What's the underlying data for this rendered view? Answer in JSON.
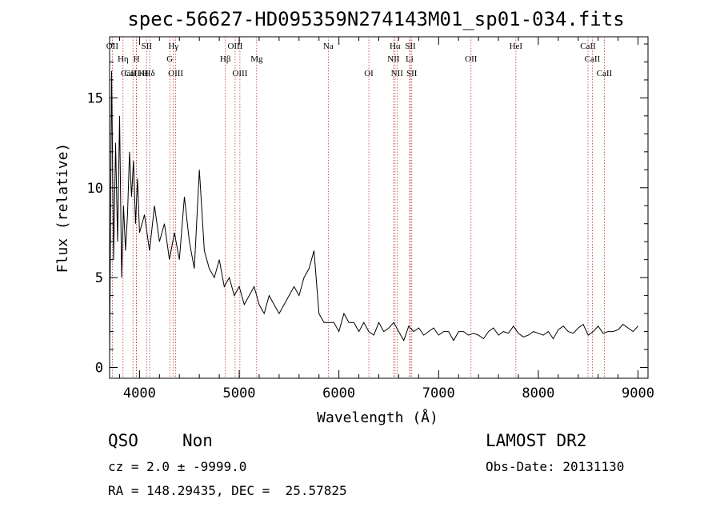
{
  "chart_data": {
    "type": "line",
    "title": "spec-56627-HD095359N274143M01_sp01-034.fits",
    "xlabel": "Wavelength (Å)",
    "ylabel": "Flux (relative)",
    "xlim": [
      3700,
      9100
    ],
    "ylim": [
      -0.6,
      18.4
    ],
    "xticks": [
      4000,
      5000,
      6000,
      7000,
      8000,
      9000
    ],
    "yticks": [
      0,
      5,
      10,
      15
    ],
    "grid": false,
    "line_color": "#000000",
    "marker_color": "#b22222",
    "series": [
      {
        "name": "spectrum",
        "x": [
          3700,
          3720,
          3740,
          3760,
          3780,
          3800,
          3820,
          3840,
          3860,
          3880,
          3900,
          3920,
          3940,
          3960,
          3980,
          4000,
          4050,
          4100,
          4150,
          4200,
          4250,
          4300,
          4350,
          4400,
          4450,
          4500,
          4550,
          4600,
          4650,
          4700,
          4750,
          4800,
          4850,
          4900,
          4950,
          5000,
          5050,
          5100,
          5150,
          5200,
          5250,
          5300,
          5350,
          5400,
          5450,
          5500,
          5550,
          5600,
          5650,
          5700,
          5750,
          5800,
          5850,
          5900,
          5950,
          6000,
          6050,
          6100,
          6150,
          6200,
          6250,
          6300,
          6350,
          6400,
          6450,
          6500,
          6550,
          6600,
          6650,
          6700,
          6750,
          6800,
          6850,
          6900,
          6950,
          7000,
          7050,
          7100,
          7150,
          7200,
          7250,
          7300,
          7350,
          7400,
          7450,
          7500,
          7550,
          7600,
          7650,
          7700,
          7750,
          7800,
          7850,
          7900,
          7950,
          8000,
          8050,
          8100,
          8150,
          8200,
          8250,
          8300,
          8350,
          8400,
          8450,
          8500,
          8550,
          8600,
          8650,
          8700,
          8750,
          8800,
          8850,
          8900,
          8950,
          9000
        ],
        "y": [
          0.5,
          16.5,
          6.0,
          12.5,
          7.0,
          14.0,
          5.0,
          9.0,
          6.5,
          8.5,
          12.0,
          9.5,
          11.5,
          8.0,
          10.5,
          7.5,
          8.5,
          6.5,
          9.0,
          7.0,
          8.0,
          6.0,
          7.5,
          6.0,
          9.5,
          7.0,
          5.5,
          11.0,
          6.5,
          5.5,
          5.0,
          6.0,
          4.5,
          5.0,
          4.0,
          4.5,
          3.5,
          4.0,
          4.5,
          3.5,
          3.0,
          4.0,
          3.5,
          3.0,
          3.5,
          4.0,
          4.5,
          4.0,
          5.0,
          5.5,
          6.5,
          3.0,
          2.5,
          2.5,
          2.5,
          2.0,
          3.0,
          2.5,
          2.5,
          2.0,
          2.5,
          2.0,
          1.8,
          2.5,
          2.0,
          2.2,
          2.5,
          2.0,
          1.5,
          2.3,
          2.0,
          2.2,
          1.8,
          2.0,
          2.2,
          1.8,
          2.0,
          2.0,
          1.5,
          2.0,
          2.0,
          1.8,
          1.9,
          1.8,
          1.6,
          2.0,
          2.2,
          1.8,
          2.0,
          1.9,
          2.3,
          1.9,
          1.7,
          1.8,
          2.0,
          1.9,
          1.8,
          2.0,
          1.6,
          2.1,
          2.3,
          2.0,
          1.9,
          2.2,
          2.4,
          1.8,
          2.0,
          2.3,
          1.9,
          2.0,
          2.0,
          2.1,
          2.4,
          2.2,
          2.0,
          2.3
        ]
      }
    ],
    "spectral_lines": [
      {
        "label": "OII",
        "wavelength": 3727,
        "row": 0
      },
      {
        "label": "Hη",
        "wavelength": 3835,
        "row": 1
      },
      {
        "label": "CaII K",
        "wavelength": 3934,
        "row": 2
      },
      {
        "label": "CaII H",
        "wavelength": 3969,
        "row": 2
      },
      {
        "label": "H",
        "wavelength": 3970,
        "row": 1
      },
      {
        "label": "SII",
        "wavelength": 4072,
        "row": 0
      },
      {
        "label": "Hδ",
        "wavelength": 4102,
        "row": 2
      },
      {
        "label": "Hγ",
        "wavelength": 4340,
        "row": 0
      },
      {
        "label": "G",
        "wavelength": 4304,
        "row": 1
      },
      {
        "label": "OIII",
        "wavelength": 4363,
        "row": 2
      },
      {
        "label": "OIII",
        "wavelength": 4959,
        "row": 0
      },
      {
        "label": "Hβ",
        "wavelength": 4861,
        "row": 1
      },
      {
        "label": "OIII",
        "wavelength": 5007,
        "row": 2
      },
      {
        "label": "Mg",
        "wavelength": 5175,
        "row": 1
      },
      {
        "label": "Na",
        "wavelength": 5893,
        "row": 0
      },
      {
        "label": "OI",
        "wavelength": 6300,
        "row": 2
      },
      {
        "label": "Hα",
        "wavelength": 6563,
        "row": 0
      },
      {
        "label": "NII",
        "wavelength": 6548,
        "row": 1
      },
      {
        "label": "NII",
        "wavelength": 6583,
        "row": 2
      },
      {
        "label": "SII",
        "wavelength": 6717,
        "row": 0
      },
      {
        "label": "Li",
        "wavelength": 6708,
        "row": 1
      },
      {
        "label": "SII",
        "wavelength": 6731,
        "row": 2
      },
      {
        "label": "OII",
        "wavelength": 7325,
        "row": 1
      },
      {
        "label": "HeI",
        "wavelength": 7775,
        "row": 0
      },
      {
        "label": "CaII",
        "wavelength": 8498,
        "row": 0
      },
      {
        "label": "CaII",
        "wavelength": 8542,
        "row": 1
      },
      {
        "label": "CaII",
        "wavelength": 8662,
        "row": 2
      }
    ]
  },
  "info": {
    "class": "QSO",
    "subclass": "Non",
    "survey": "LAMOST DR2",
    "cz": "cz = 2.0 ± -9999.0",
    "obs_date": "Obs-Date: 20131130",
    "radec": "RA = 148.29435, DEC =  25.57825"
  }
}
